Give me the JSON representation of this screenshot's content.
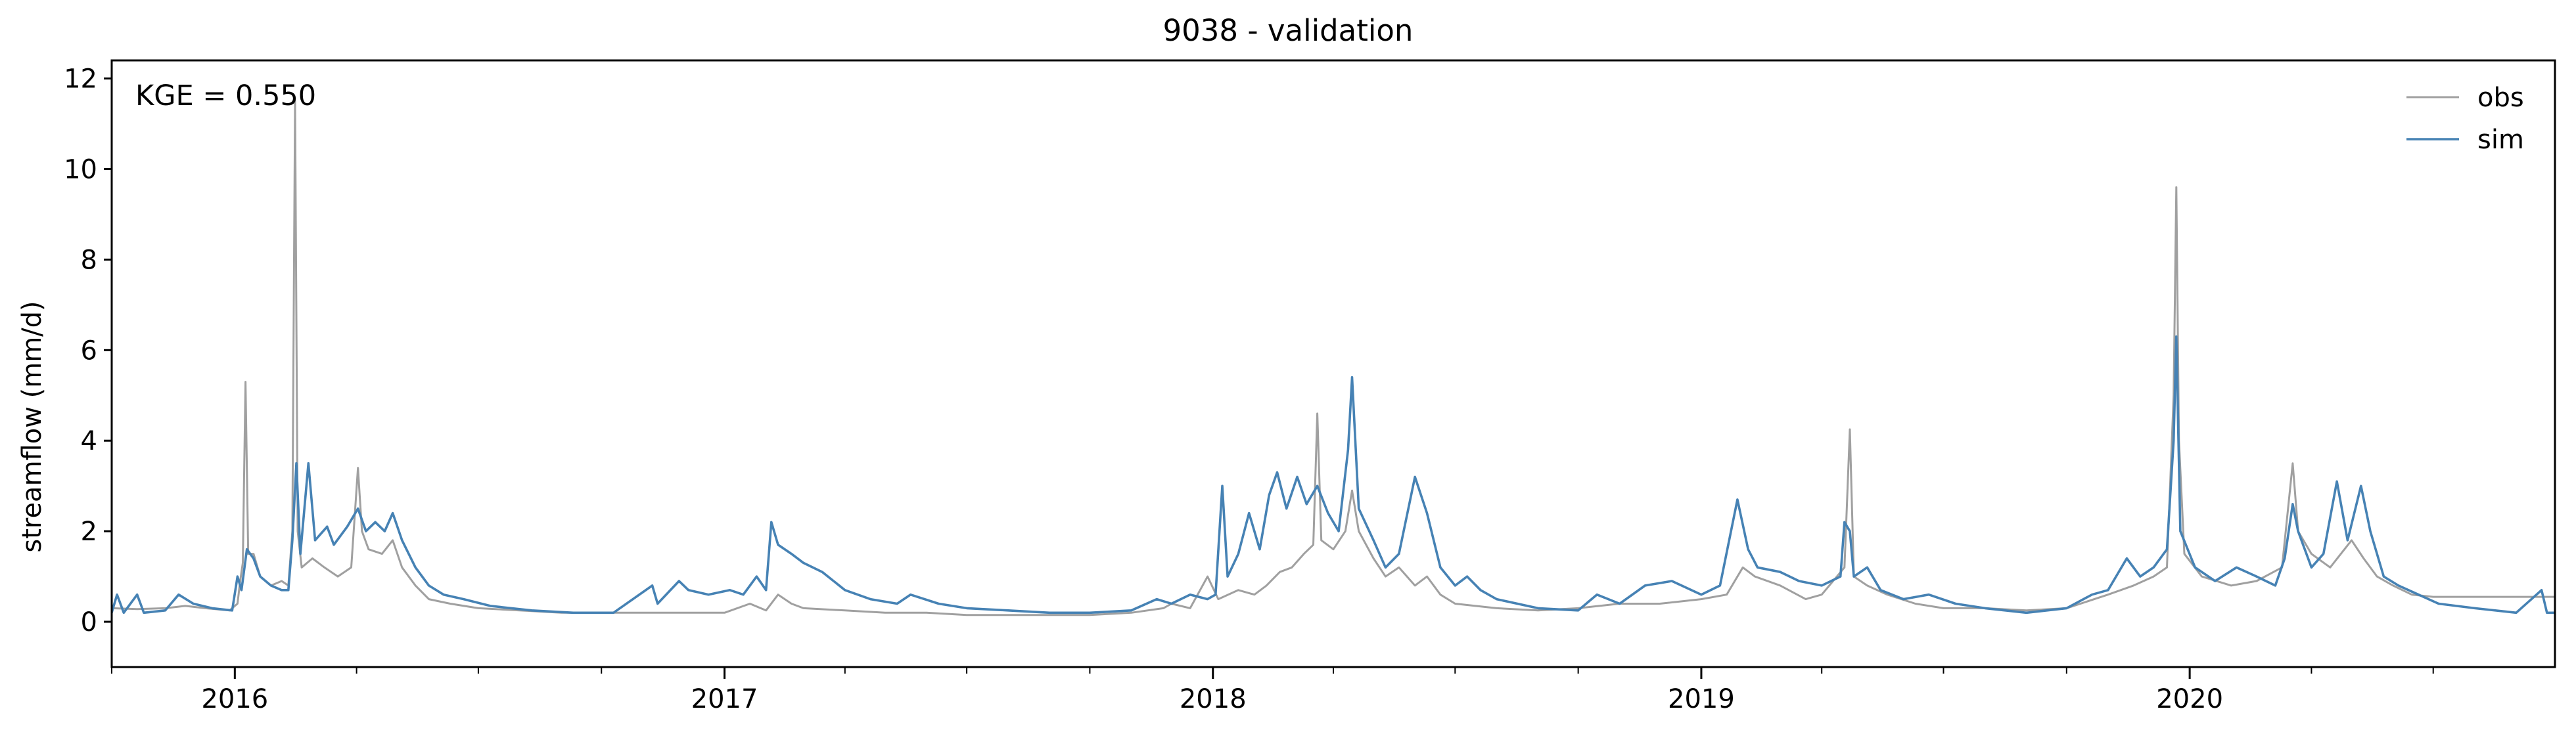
{
  "chart_data": {
    "type": "line",
    "title": "9038 - validation",
    "ylabel": "streamflow (mm/d)",
    "xlabel": "",
    "annotation": "KGE = 0.550",
    "xlim": [
      "2015-10-01",
      "2020-09-30"
    ],
    "ylim": [
      -1,
      12.4
    ],
    "yticks": [
      0,
      2,
      4,
      6,
      8,
      10,
      12
    ],
    "xticks": [
      {
        "label": "2016",
        "date": "2016-01-01"
      },
      {
        "label": "2017",
        "date": "2017-01-01"
      },
      {
        "label": "2018",
        "date": "2018-01-01"
      },
      {
        "label": "2019",
        "date": "2019-01-01"
      },
      {
        "label": "2020",
        "date": "2020-01-01"
      }
    ],
    "legend_position": "top-right",
    "grid": false,
    "series": [
      {
        "name": "obs",
        "color": "#a0a0a0",
        "points": [
          [
            "2015-10-01",
            0.3
          ],
          [
            "2015-10-20",
            0.28
          ],
          [
            "2015-11-10",
            0.3
          ],
          [
            "2015-11-25",
            0.35
          ],
          [
            "2015-12-10",
            0.3
          ],
          [
            "2015-12-28",
            0.25
          ],
          [
            "2016-01-03",
            0.4
          ],
          [
            "2016-01-05",
            0.9
          ],
          [
            "2016-01-07",
            1.3
          ],
          [
            "2016-01-09",
            5.3
          ],
          [
            "2016-01-11",
            1.5
          ],
          [
            "2016-01-15",
            1.5
          ],
          [
            "2016-01-20",
            1.0
          ],
          [
            "2016-01-28",
            0.8
          ],
          [
            "2016-02-05",
            0.9
          ],
          [
            "2016-02-10",
            0.8
          ],
          [
            "2016-02-13",
            2.0
          ],
          [
            "2016-02-15",
            11.5
          ],
          [
            "2016-02-17",
            2.0
          ],
          [
            "2016-02-20",
            1.2
          ],
          [
            "2016-02-28",
            1.4
          ],
          [
            "2016-03-08",
            1.2
          ],
          [
            "2016-03-18",
            1.0
          ],
          [
            "2016-03-28",
            1.2
          ],
          [
            "2016-04-02",
            3.4
          ],
          [
            "2016-04-05",
            2.0
          ],
          [
            "2016-04-10",
            1.6
          ],
          [
            "2016-04-20",
            1.5
          ],
          [
            "2016-04-28",
            1.8
          ],
          [
            "2016-05-05",
            1.2
          ],
          [
            "2016-05-15",
            0.8
          ],
          [
            "2016-05-25",
            0.5
          ],
          [
            "2016-06-10",
            0.4
          ],
          [
            "2016-07-01",
            0.3
          ],
          [
            "2016-08-01",
            0.25
          ],
          [
            "2016-09-01",
            0.2
          ],
          [
            "2016-10-01",
            0.2
          ],
          [
            "2016-11-01",
            0.2
          ],
          [
            "2016-12-01",
            0.2
          ],
          [
            "2017-01-01",
            0.2
          ],
          [
            "2017-01-20",
            0.4
          ],
          [
            "2017-02-01",
            0.25
          ],
          [
            "2017-02-10",
            0.6
          ],
          [
            "2017-02-20",
            0.4
          ],
          [
            "2017-03-01",
            0.3
          ],
          [
            "2017-04-01",
            0.25
          ],
          [
            "2017-05-01",
            0.2
          ],
          [
            "2017-06-01",
            0.2
          ],
          [
            "2017-07-01",
            0.15
          ],
          [
            "2017-08-01",
            0.15
          ],
          [
            "2017-09-01",
            0.15
          ],
          [
            "2017-10-01",
            0.15
          ],
          [
            "2017-11-01",
            0.2
          ],
          [
            "2017-11-25",
            0.3
          ],
          [
            "2017-12-01",
            0.4
          ],
          [
            "2017-12-15",
            0.3
          ],
          [
            "2017-12-28",
            1.0
          ],
          [
            "2018-01-05",
            0.5
          ],
          [
            "2018-01-20",
            0.7
          ],
          [
            "2018-02-01",
            0.6
          ],
          [
            "2018-02-10",
            0.8
          ],
          [
            "2018-02-20",
            1.1
          ],
          [
            "2018-03-01",
            1.2
          ],
          [
            "2018-03-10",
            1.5
          ],
          [
            "2018-03-17",
            1.7
          ],
          [
            "2018-03-20",
            4.6
          ],
          [
            "2018-03-23",
            1.8
          ],
          [
            "2018-04-01",
            1.6
          ],
          [
            "2018-04-10",
            2.0
          ],
          [
            "2018-04-15",
            2.9
          ],
          [
            "2018-04-20",
            2.0
          ],
          [
            "2018-05-01",
            1.4
          ],
          [
            "2018-05-10",
            1.0
          ],
          [
            "2018-05-20",
            1.2
          ],
          [
            "2018-06-01",
            0.8
          ],
          [
            "2018-06-10",
            1.0
          ],
          [
            "2018-06-20",
            0.6
          ],
          [
            "2018-07-01",
            0.4
          ],
          [
            "2018-08-01",
            0.3
          ],
          [
            "2018-09-01",
            0.25
          ],
          [
            "2018-10-01",
            0.3
          ],
          [
            "2018-11-01",
            0.4
          ],
          [
            "2018-12-01",
            0.4
          ],
          [
            "2019-01-01",
            0.5
          ],
          [
            "2019-01-20",
            0.6
          ],
          [
            "2019-02-01",
            1.2
          ],
          [
            "2019-02-10",
            1.0
          ],
          [
            "2019-03-01",
            0.8
          ],
          [
            "2019-03-20",
            0.5
          ],
          [
            "2019-04-01",
            0.6
          ],
          [
            "2019-04-18",
            1.2
          ],
          [
            "2019-04-22",
            4.25
          ],
          [
            "2019-04-25",
            1.0
          ],
          [
            "2019-05-05",
            0.8
          ],
          [
            "2019-05-20",
            0.6
          ],
          [
            "2019-06-10",
            0.4
          ],
          [
            "2019-07-01",
            0.3
          ],
          [
            "2019-08-01",
            0.3
          ],
          [
            "2019-09-01",
            0.25
          ],
          [
            "2019-10-01",
            0.3
          ],
          [
            "2019-11-01",
            0.6
          ],
          [
            "2019-11-20",
            0.8
          ],
          [
            "2019-12-05",
            1.0
          ],
          [
            "2019-12-15",
            1.2
          ],
          [
            "2019-12-20",
            5.0
          ],
          [
            "2019-12-22",
            9.6
          ],
          [
            "2019-12-24",
            4.0
          ],
          [
            "2019-12-28",
            1.5
          ],
          [
            "2020-01-10",
            1.0
          ],
          [
            "2020-02-01",
            0.8
          ],
          [
            "2020-02-20",
            0.9
          ],
          [
            "2020-03-10",
            1.2
          ],
          [
            "2020-03-18",
            3.5
          ],
          [
            "2020-03-22",
            2.0
          ],
          [
            "2020-04-01",
            1.5
          ],
          [
            "2020-04-15",
            1.2
          ],
          [
            "2020-05-01",
            1.8
          ],
          [
            "2020-05-10",
            1.4
          ],
          [
            "2020-05-20",
            1.0
          ],
          [
            "2020-06-01",
            0.8
          ],
          [
            "2020-06-15",
            0.6
          ],
          [
            "2020-07-01",
            0.55
          ],
          [
            "2020-08-01",
            0.55
          ],
          [
            "2020-09-01",
            0.55
          ],
          [
            "2020-09-30",
            0.55
          ]
        ]
      },
      {
        "name": "sim",
        "color": "#4682b4",
        "points": [
          [
            "2015-10-01",
            0.2
          ],
          [
            "2015-10-05",
            0.6
          ],
          [
            "2015-10-10",
            0.2
          ],
          [
            "2015-10-20",
            0.6
          ],
          [
            "2015-10-25",
            0.2
          ],
          [
            "2015-11-10",
            0.25
          ],
          [
            "2015-11-20",
            0.6
          ],
          [
            "2015-12-01",
            0.4
          ],
          [
            "2015-12-15",
            0.3
          ],
          [
            "2015-12-30",
            0.25
          ],
          [
            "2016-01-03",
            1.0
          ],
          [
            "2016-01-06",
            0.7
          ],
          [
            "2016-01-10",
            1.6
          ],
          [
            "2016-01-15",
            1.4
          ],
          [
            "2016-01-20",
            1.0
          ],
          [
            "2016-01-28",
            0.8
          ],
          [
            "2016-02-05",
            0.7
          ],
          [
            "2016-02-10",
            0.7
          ],
          [
            "2016-02-13",
            1.8
          ],
          [
            "2016-02-16",
            3.5
          ],
          [
            "2016-02-19",
            1.5
          ],
          [
            "2016-02-25",
            3.5
          ],
          [
            "2016-03-01",
            1.8
          ],
          [
            "2016-03-10",
            2.1
          ],
          [
            "2016-03-15",
            1.7
          ],
          [
            "2016-03-25",
            2.1
          ],
          [
            "2016-04-02",
            2.5
          ],
          [
            "2016-04-08",
            2.0
          ],
          [
            "2016-04-15",
            2.2
          ],
          [
            "2016-04-22",
            2.0
          ],
          [
            "2016-04-28",
            2.4
          ],
          [
            "2016-05-05",
            1.8
          ],
          [
            "2016-05-15",
            1.2
          ],
          [
            "2016-05-25",
            0.8
          ],
          [
            "2016-06-05",
            0.6
          ],
          [
            "2016-06-20",
            0.5
          ],
          [
            "2016-07-10",
            0.35
          ],
          [
            "2016-08-10",
            0.25
          ],
          [
            "2016-09-10",
            0.2
          ],
          [
            "2016-10-10",
            0.2
          ],
          [
            "2016-11-08",
            0.8
          ],
          [
            "2016-11-12",
            0.4
          ],
          [
            "2016-11-28",
            0.9
          ],
          [
            "2016-12-05",
            0.7
          ],
          [
            "2016-12-20",
            0.6
          ],
          [
            "2017-01-05",
            0.7
          ],
          [
            "2017-01-15",
            0.6
          ],
          [
            "2017-01-25",
            1.0
          ],
          [
            "2017-02-01",
            0.7
          ],
          [
            "2017-02-05",
            2.2
          ],
          [
            "2017-02-10",
            1.7
          ],
          [
            "2017-02-20",
            1.5
          ],
          [
            "2017-03-01",
            1.3
          ],
          [
            "2017-03-15",
            1.1
          ],
          [
            "2017-04-01",
            0.7
          ],
          [
            "2017-04-20",
            0.5
          ],
          [
            "2017-05-10",
            0.4
          ],
          [
            "2017-05-20",
            0.6
          ],
          [
            "2017-06-10",
            0.4
          ],
          [
            "2017-07-01",
            0.3
          ],
          [
            "2017-08-01",
            0.25
          ],
          [
            "2017-09-01",
            0.2
          ],
          [
            "2017-10-01",
            0.2
          ],
          [
            "2017-11-01",
            0.25
          ],
          [
            "2017-11-20",
            0.5
          ],
          [
            "2017-12-01",
            0.4
          ],
          [
            "2017-12-15",
            0.6
          ],
          [
            "2017-12-28",
            0.5
          ],
          [
            "2018-01-03",
            0.6
          ],
          [
            "2018-01-08",
            3.0
          ],
          [
            "2018-01-12",
            1.0
          ],
          [
            "2018-01-20",
            1.5
          ],
          [
            "2018-01-28",
            2.4
          ],
          [
            "2018-02-05",
            1.6
          ],
          [
            "2018-02-12",
            2.8
          ],
          [
            "2018-02-18",
            3.3
          ],
          [
            "2018-02-25",
            2.5
          ],
          [
            "2018-03-05",
            3.2
          ],
          [
            "2018-03-12",
            2.6
          ],
          [
            "2018-03-20",
            3.0
          ],
          [
            "2018-03-28",
            2.4
          ],
          [
            "2018-04-05",
            2.0
          ],
          [
            "2018-04-12",
            3.8
          ],
          [
            "2018-04-15",
            5.4
          ],
          [
            "2018-04-20",
            2.5
          ],
          [
            "2018-05-01",
            1.8
          ],
          [
            "2018-05-10",
            1.2
          ],
          [
            "2018-05-20",
            1.5
          ],
          [
            "2018-06-01",
            3.2
          ],
          [
            "2018-06-10",
            2.4
          ],
          [
            "2018-06-20",
            1.2
          ],
          [
            "2018-07-01",
            0.8
          ],
          [
            "2018-07-10",
            1.0
          ],
          [
            "2018-07-20",
            0.7
          ],
          [
            "2018-08-01",
            0.5
          ],
          [
            "2018-09-01",
            0.3
          ],
          [
            "2018-10-01",
            0.25
          ],
          [
            "2018-10-15",
            0.6
          ],
          [
            "2018-11-01",
            0.4
          ],
          [
            "2018-11-20",
            0.8
          ],
          [
            "2018-12-10",
            0.9
          ],
          [
            "2019-01-01",
            0.6
          ],
          [
            "2019-01-15",
            0.8
          ],
          [
            "2019-01-28",
            2.7
          ],
          [
            "2019-02-05",
            1.6
          ],
          [
            "2019-02-12",
            1.2
          ],
          [
            "2019-03-01",
            1.1
          ],
          [
            "2019-03-15",
            0.9
          ],
          [
            "2019-04-01",
            0.8
          ],
          [
            "2019-04-15",
            1.0
          ],
          [
            "2019-04-18",
            2.2
          ],
          [
            "2019-04-22",
            2.0
          ],
          [
            "2019-04-25",
            1.0
          ],
          [
            "2019-05-05",
            1.2
          ],
          [
            "2019-05-15",
            0.7
          ],
          [
            "2019-06-01",
            0.5
          ],
          [
            "2019-06-20",
            0.6
          ],
          [
            "2019-07-10",
            0.4
          ],
          [
            "2019-08-01",
            0.3
          ],
          [
            "2019-09-01",
            0.2
          ],
          [
            "2019-10-01",
            0.3
          ],
          [
            "2019-10-20",
            0.6
          ],
          [
            "2019-11-01",
            0.7
          ],
          [
            "2019-11-15",
            1.4
          ],
          [
            "2019-11-25",
            1.0
          ],
          [
            "2019-12-05",
            1.2
          ],
          [
            "2019-12-15",
            1.6
          ],
          [
            "2019-12-20",
            4.0
          ],
          [
            "2019-12-22",
            6.3
          ],
          [
            "2019-12-25",
            2.0
          ],
          [
            "2020-01-05",
            1.2
          ],
          [
            "2020-01-20",
            0.9
          ],
          [
            "2020-02-05",
            1.2
          ],
          [
            "2020-02-20",
            1.0
          ],
          [
            "2020-03-05",
            0.8
          ],
          [
            "2020-03-12",
            1.4
          ],
          [
            "2020-03-18",
            2.6
          ],
          [
            "2020-03-22",
            2.0
          ],
          [
            "2020-04-01",
            1.2
          ],
          [
            "2020-04-10",
            1.5
          ],
          [
            "2020-04-20",
            3.1
          ],
          [
            "2020-04-28",
            1.8
          ],
          [
            "2020-05-08",
            3.0
          ],
          [
            "2020-05-15",
            2.0
          ],
          [
            "2020-05-25",
            1.0
          ],
          [
            "2020-06-05",
            0.8
          ],
          [
            "2020-06-20",
            0.6
          ],
          [
            "2020-07-05",
            0.4
          ],
          [
            "2020-08-01",
            0.3
          ],
          [
            "2020-09-01",
            0.2
          ],
          [
            "2020-09-20",
            0.7
          ],
          [
            "2020-09-24",
            0.2
          ],
          [
            "2020-09-30",
            0.2
          ]
        ]
      }
    ]
  }
}
